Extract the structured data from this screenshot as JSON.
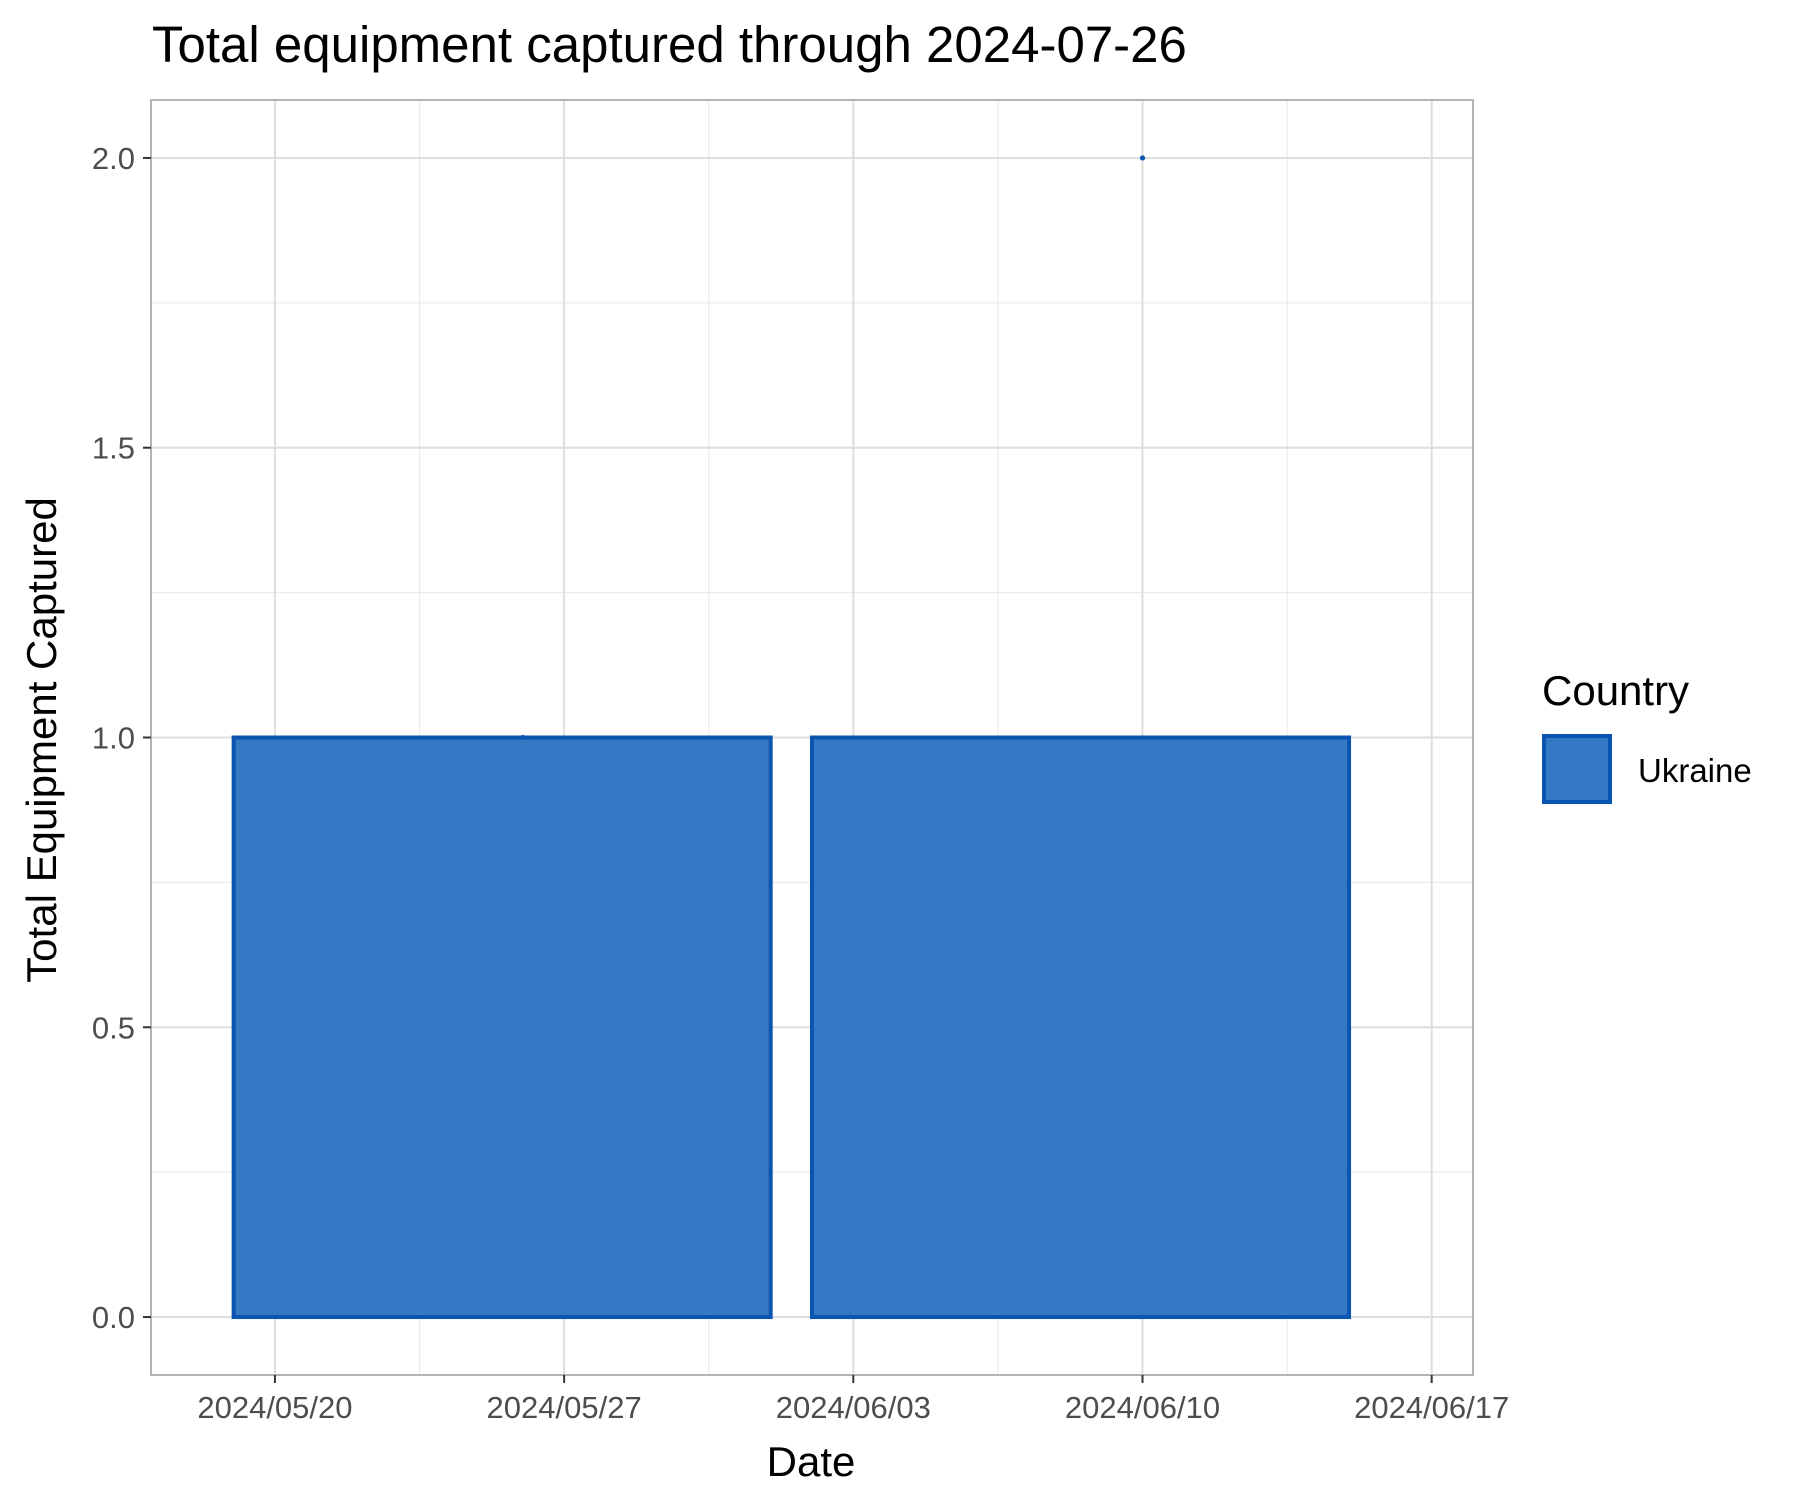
{
  "chart_data": {
    "type": "bar",
    "title": "Total equipment captured through 2024-07-26",
    "xlabel": "Date",
    "ylabel": "Total Equipment Captured",
    "x_tick_labels": [
      "2024/05/20",
      "2024/05/27",
      "2024/06/03",
      "2024/06/10",
      "2024/06/17"
    ],
    "x_ticks": [
      "2024-05-20",
      "2024-05-27",
      "2024-06-03",
      "2024-06-10",
      "2024-06-17"
    ],
    "x_range": [
      "2024-05-17",
      "2024-06-18"
    ],
    "y_tick_labels": [
      "0.0",
      "0.5",
      "1.0",
      "1.5",
      "2.0"
    ],
    "y_ticks": [
      0,
      0.5,
      1.0,
      1.5,
      2.0
    ],
    "ylim": [
      -0.1,
      2.1
    ],
    "grid": true,
    "legend": {
      "title": "Country",
      "position": "right",
      "entries": [
        "Ukraine"
      ]
    },
    "series": [
      {
        "name": "Ukraine",
        "color": "#3579c5",
        "edge_color": "#0a55b0",
        "bars": [
          {
            "start": "2024-05-19",
            "end": "2024-06-01",
            "value": 1
          },
          {
            "start": "2024-06-02",
            "end": "2024-06-15",
            "value": 1
          }
        ],
        "points": [
          {
            "x": "2024-05-26",
            "y": 1
          },
          {
            "x": "2024-06-10",
            "y": 2
          }
        ]
      }
    ]
  }
}
